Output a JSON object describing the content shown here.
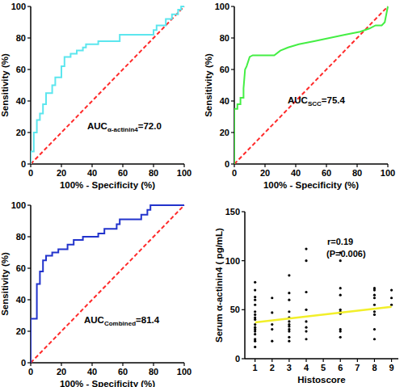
{
  "chart_data": [
    {
      "type": "line",
      "xlabel": "100% - Specificity (%)",
      "ylabel": "Sensitivity (%)",
      "xlim": [
        0,
        100
      ],
      "ylim": [
        0,
        100
      ],
      "xticks": [
        0,
        20,
        40,
        60,
        80,
        100
      ],
      "yticks": [
        0,
        20,
        40,
        60,
        80,
        100
      ],
      "annotations": [
        {
          "text": "AUC",
          "subscript": "α-actinin4",
          "suffix": "=72.0"
        }
      ],
      "series": [
        {
          "color": "#5ce6ee",
          "line_style": "solid",
          "x": [
            0,
            0,
            2,
            2,
            4,
            4,
            6,
            6,
            8,
            8,
            10,
            10,
            14,
            14,
            16,
            16,
            20,
            20,
            22,
            22,
            26,
            26,
            30,
            30,
            34,
            34,
            36,
            36,
            44,
            44,
            58,
            58,
            80,
            80,
            82,
            82,
            88,
            88,
            92,
            92,
            96,
            96,
            98,
            98,
            100
          ],
          "values": [
            0,
            8,
            8,
            20,
            20,
            28,
            28,
            32,
            32,
            38,
            38,
            45,
            45,
            50,
            50,
            55,
            55,
            62,
            62,
            68,
            68,
            70,
            70,
            72,
            72,
            74,
            74,
            76,
            76,
            78,
            78,
            82,
            82,
            85,
            85,
            88,
            88,
            92,
            92,
            95,
            95,
            98,
            98,
            100,
            100
          ]
        },
        {
          "color": "#ff2a2a",
          "line_style": "dashed",
          "x": [
            0,
            100
          ],
          "values": [
            0,
            100
          ]
        }
      ]
    },
    {
      "type": "line",
      "xlabel": "100% - Specificity (%)",
      "ylabel": "Sensitivity (%)",
      "xlim": [
        0,
        100
      ],
      "ylim": [
        0,
        100
      ],
      "xticks": [
        0,
        20,
        40,
        60,
        80,
        100
      ],
      "yticks": [
        0,
        20,
        40,
        60,
        80,
        100
      ],
      "annotations": [
        {
          "text": "AUC",
          "subscript": "SCC",
          "suffix": "=75.4"
        }
      ],
      "series": [
        {
          "color": "#44ee44",
          "line_style": "solid",
          "x": [
            0,
            0,
            2,
            2,
            4,
            4,
            6,
            6,
            7,
            8,
            10,
            12,
            26,
            30,
            35,
            42,
            52,
            62,
            72,
            82,
            88,
            92,
            96,
            98,
            100
          ],
          "values": [
            0,
            35,
            35,
            38,
            38,
            42,
            42,
            48,
            60,
            62,
            68,
            69,
            69,
            72,
            74,
            76,
            78,
            80,
            82,
            84,
            86,
            88,
            88,
            90,
            100
          ]
        },
        {
          "color": "#ff2a2a",
          "line_style": "dashed",
          "x": [
            0,
            100
          ],
          "values": [
            0,
            100
          ]
        }
      ]
    },
    {
      "type": "line",
      "xlabel": "100% - Specificity (%)",
      "ylabel": "Sensitivity (%)",
      "xlim": [
        0,
        100
      ],
      "ylim": [
        0,
        100
      ],
      "xticks": [
        0,
        20,
        40,
        60,
        80,
        100
      ],
      "yticks": [
        0,
        20,
        40,
        60,
        80,
        100
      ],
      "annotations": [
        {
          "text": "AUC",
          "subscript": "Combined",
          "suffix": "=81.4"
        }
      ],
      "series": [
        {
          "color": "#2233cc",
          "line_style": "solid",
          "x": [
            0,
            0,
            4,
            4,
            6,
            6,
            8,
            8,
            10,
            10,
            14,
            14,
            18,
            18,
            24,
            24,
            28,
            28,
            34,
            34,
            44,
            44,
            48,
            48,
            56,
            56,
            58,
            58,
            72,
            72,
            76,
            76,
            78,
            78,
            100
          ],
          "values": [
            0,
            28,
            28,
            50,
            50,
            58,
            58,
            65,
            65,
            68,
            68,
            70,
            70,
            72,
            72,
            75,
            75,
            78,
            78,
            80,
            80,
            82,
            82,
            85,
            85,
            88,
            88,
            91,
            91,
            94,
            94,
            97,
            97,
            100,
            100
          ]
        },
        {
          "color": "#ff2a2a",
          "line_style": "dashed",
          "x": [
            0,
            100
          ],
          "values": [
            0,
            100
          ]
        }
      ]
    },
    {
      "type": "scatter",
      "xlabel": "Histoscore",
      "ylabel": "Serum α-actinin4 ( pg/mL)",
      "xlim": [
        0.4,
        9.4
      ],
      "ylim": [
        0,
        150
      ],
      "xticks": [
        1,
        2,
        3,
        4,
        5,
        6,
        7,
        8,
        9
      ],
      "yticks": [
        0,
        50,
        100,
        150
      ],
      "annotations": [
        {
          "text": "r=0.19"
        },
        {
          "text": "(P=0.006)"
        }
      ],
      "series": [
        {
          "type": "scatter",
          "color": "#000000",
          "marker": "circle",
          "x": [
            1,
            1,
            1,
            1,
            1,
            1,
            1,
            1,
            1,
            1,
            1,
            1,
            1,
            1,
            1,
            1,
            1,
            2,
            2,
            2,
            2,
            2,
            3,
            3,
            3,
            3,
            3,
            3,
            3,
            3,
            3,
            3,
            3,
            3,
            4,
            4,
            4,
            4,
            4,
            4,
            4,
            4,
            6,
            6,
            6,
            6,
            6,
            6,
            6,
            6,
            6,
            6,
            8,
            8,
            8,
            8,
            8,
            8,
            8,
            8,
            8,
            9,
            9,
            9
          ],
          "values": [
            78,
            70,
            63,
            60,
            55,
            48,
            45,
            42,
            40,
            35,
            32,
            30,
            28,
            25,
            20,
            18,
            12,
            62,
            47,
            35,
            30,
            18,
            85,
            67,
            60,
            48,
            42,
            38,
            35,
            33,
            30,
            28,
            22,
            18,
            112,
            100,
            68,
            50,
            38,
            32,
            28,
            20,
            108,
            100,
            72,
            65,
            50,
            48,
            46,
            30,
            28,
            22,
            72,
            70,
            65,
            62,
            55,
            48,
            45,
            30,
            20,
            70,
            62,
            55
          ]
        },
        {
          "type": "line",
          "color": "#f2ef2a",
          "line_style": "solid",
          "x": [
            1,
            9
          ],
          "values": [
            37,
            53
          ]
        }
      ]
    }
  ]
}
